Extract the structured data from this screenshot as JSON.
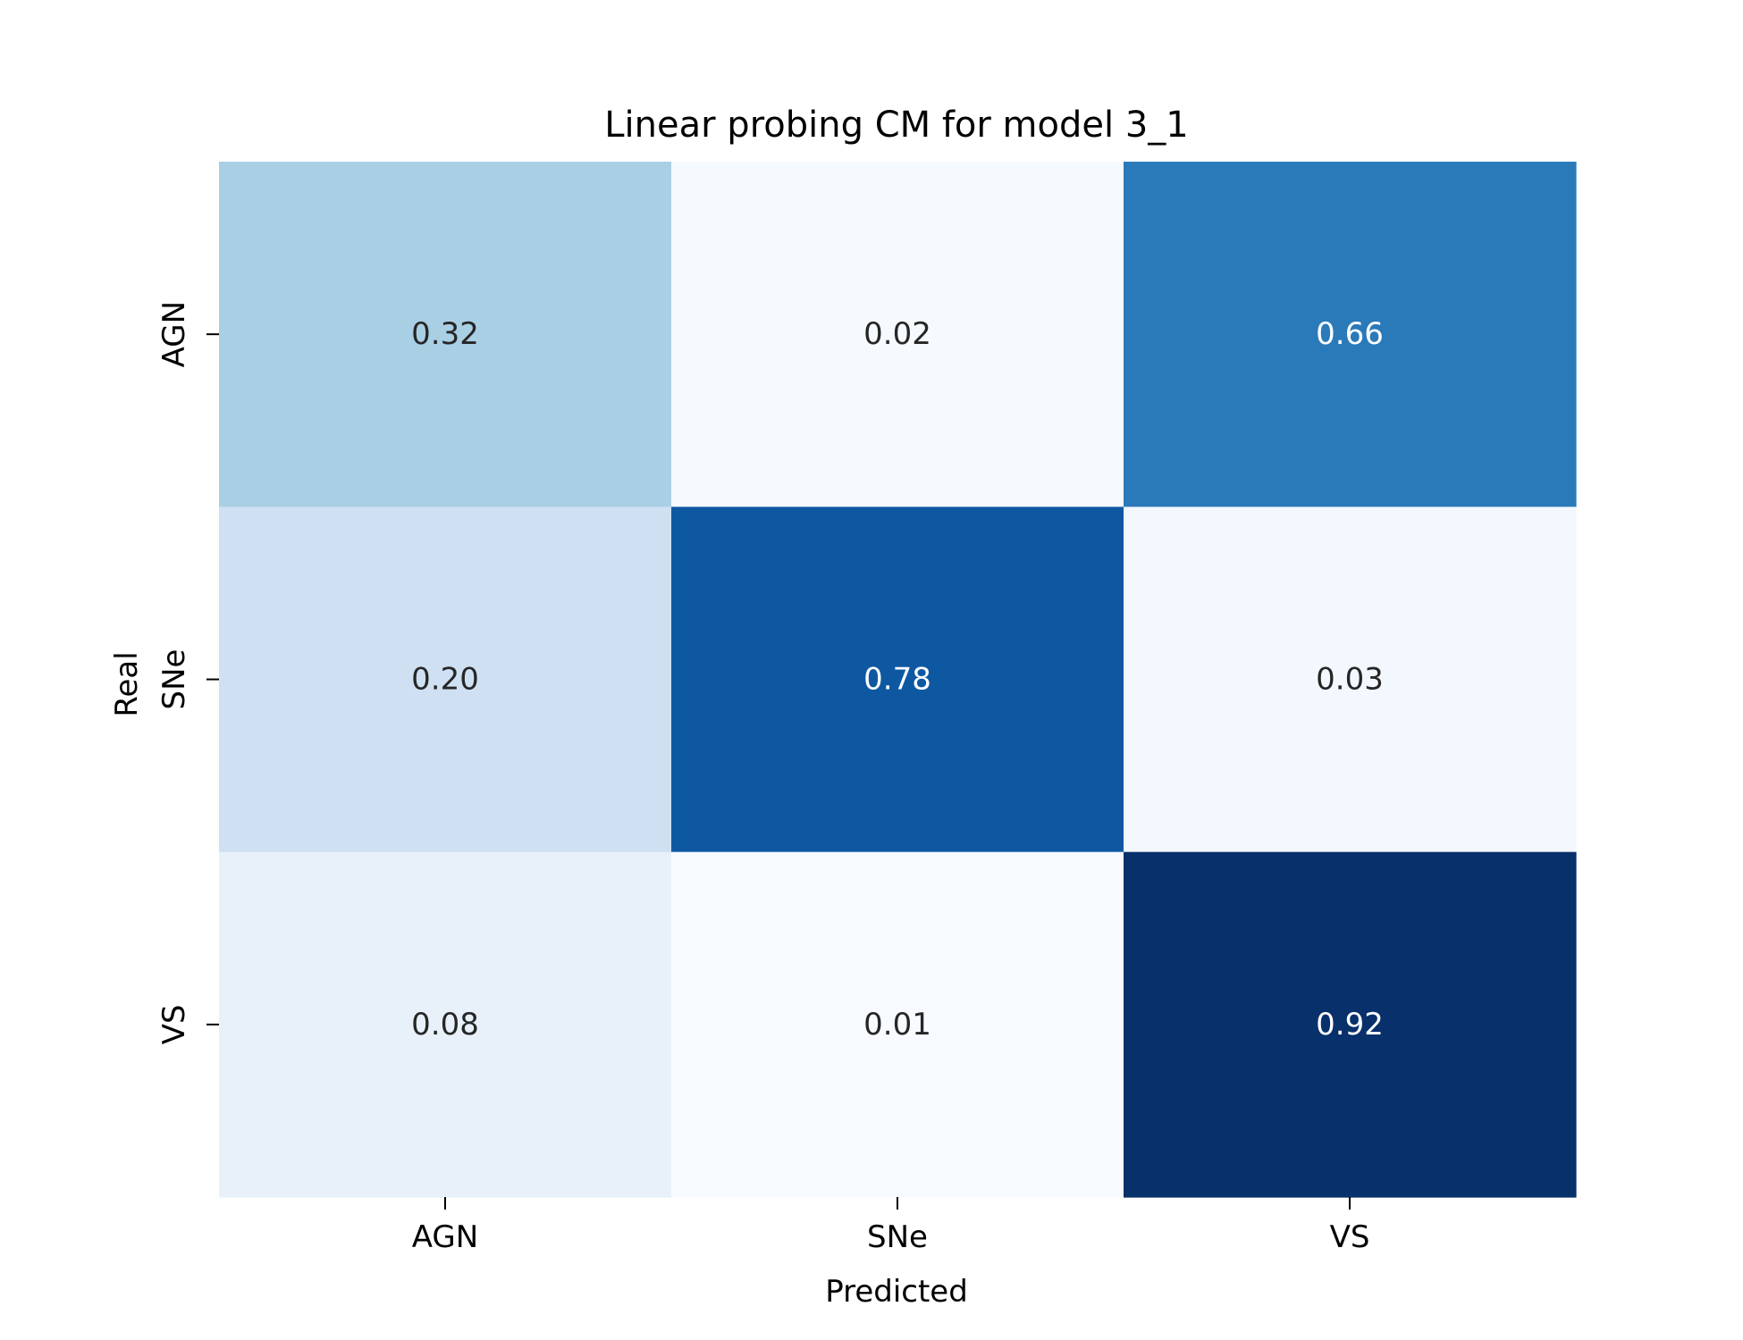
{
  "chart_data": {
    "type": "heatmap",
    "title": "Linear probing CM for model 3_1",
    "xlabel": "Predicted",
    "ylabel": "Real",
    "x_categories": [
      "AGN",
      "SNe",
      "VS"
    ],
    "y_categories": [
      "AGN",
      "SNe",
      "VS"
    ],
    "values": [
      [
        0.32,
        0.02,
        0.66
      ],
      [
        0.2,
        0.78,
        0.03
      ],
      [
        0.08,
        0.01,
        0.92
      ]
    ],
    "value_labels": [
      [
        "0.32",
        "0.02",
        "0.66"
      ],
      [
        "0.20",
        "0.78",
        "0.03"
      ],
      [
        "0.08",
        "0.01",
        "0.92"
      ]
    ],
    "colormap": "Blues",
    "color_range": [
      0.01,
      0.92
    ],
    "colorbar": false,
    "grid": false,
    "colors": {
      "low": "#f7fbff",
      "high": "#08306b",
      "dark_text": "#262626",
      "light_text": "#ffffff"
    }
  }
}
